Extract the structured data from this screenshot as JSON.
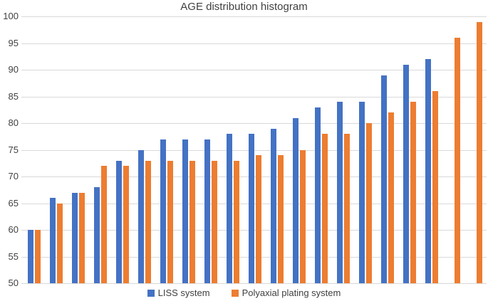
{
  "chart_data": {
    "type": "bar",
    "title": "AGE distribution histogram",
    "categories": [
      "",
      "",
      "",
      "",
      "",
      "",
      "",
      "",
      "",
      "",
      "",
      "",
      "",
      "",
      "",
      "",
      "",
      "",
      "",
      "",
      ""
    ],
    "series": [
      {
        "name": "LISS system",
        "color": "#4472C4",
        "values": [
          60,
          66,
          67,
          68,
          73,
          75,
          77,
          77,
          77,
          78,
          78,
          79,
          81,
          83,
          84,
          84,
          89,
          91,
          92,
          null,
          null
        ]
      },
      {
        "name": "Polyaxial plating system",
        "color": "#ED7D31",
        "values": [
          60,
          65,
          67,
          72,
          72,
          73,
          73,
          73,
          73,
          73,
          74,
          74,
          75,
          78,
          78,
          80,
          82,
          84,
          86,
          96,
          99
        ]
      }
    ],
    "ylim": [
      50,
      100
    ],
    "y_ticks": [
      50,
      55,
      60,
      65,
      70,
      75,
      80,
      85,
      90,
      95,
      100
    ],
    "x_tick_labels_visible": false,
    "grid": "horizontal",
    "gridline_color": "#d9d9d9",
    "legend_position": "bottom"
  }
}
